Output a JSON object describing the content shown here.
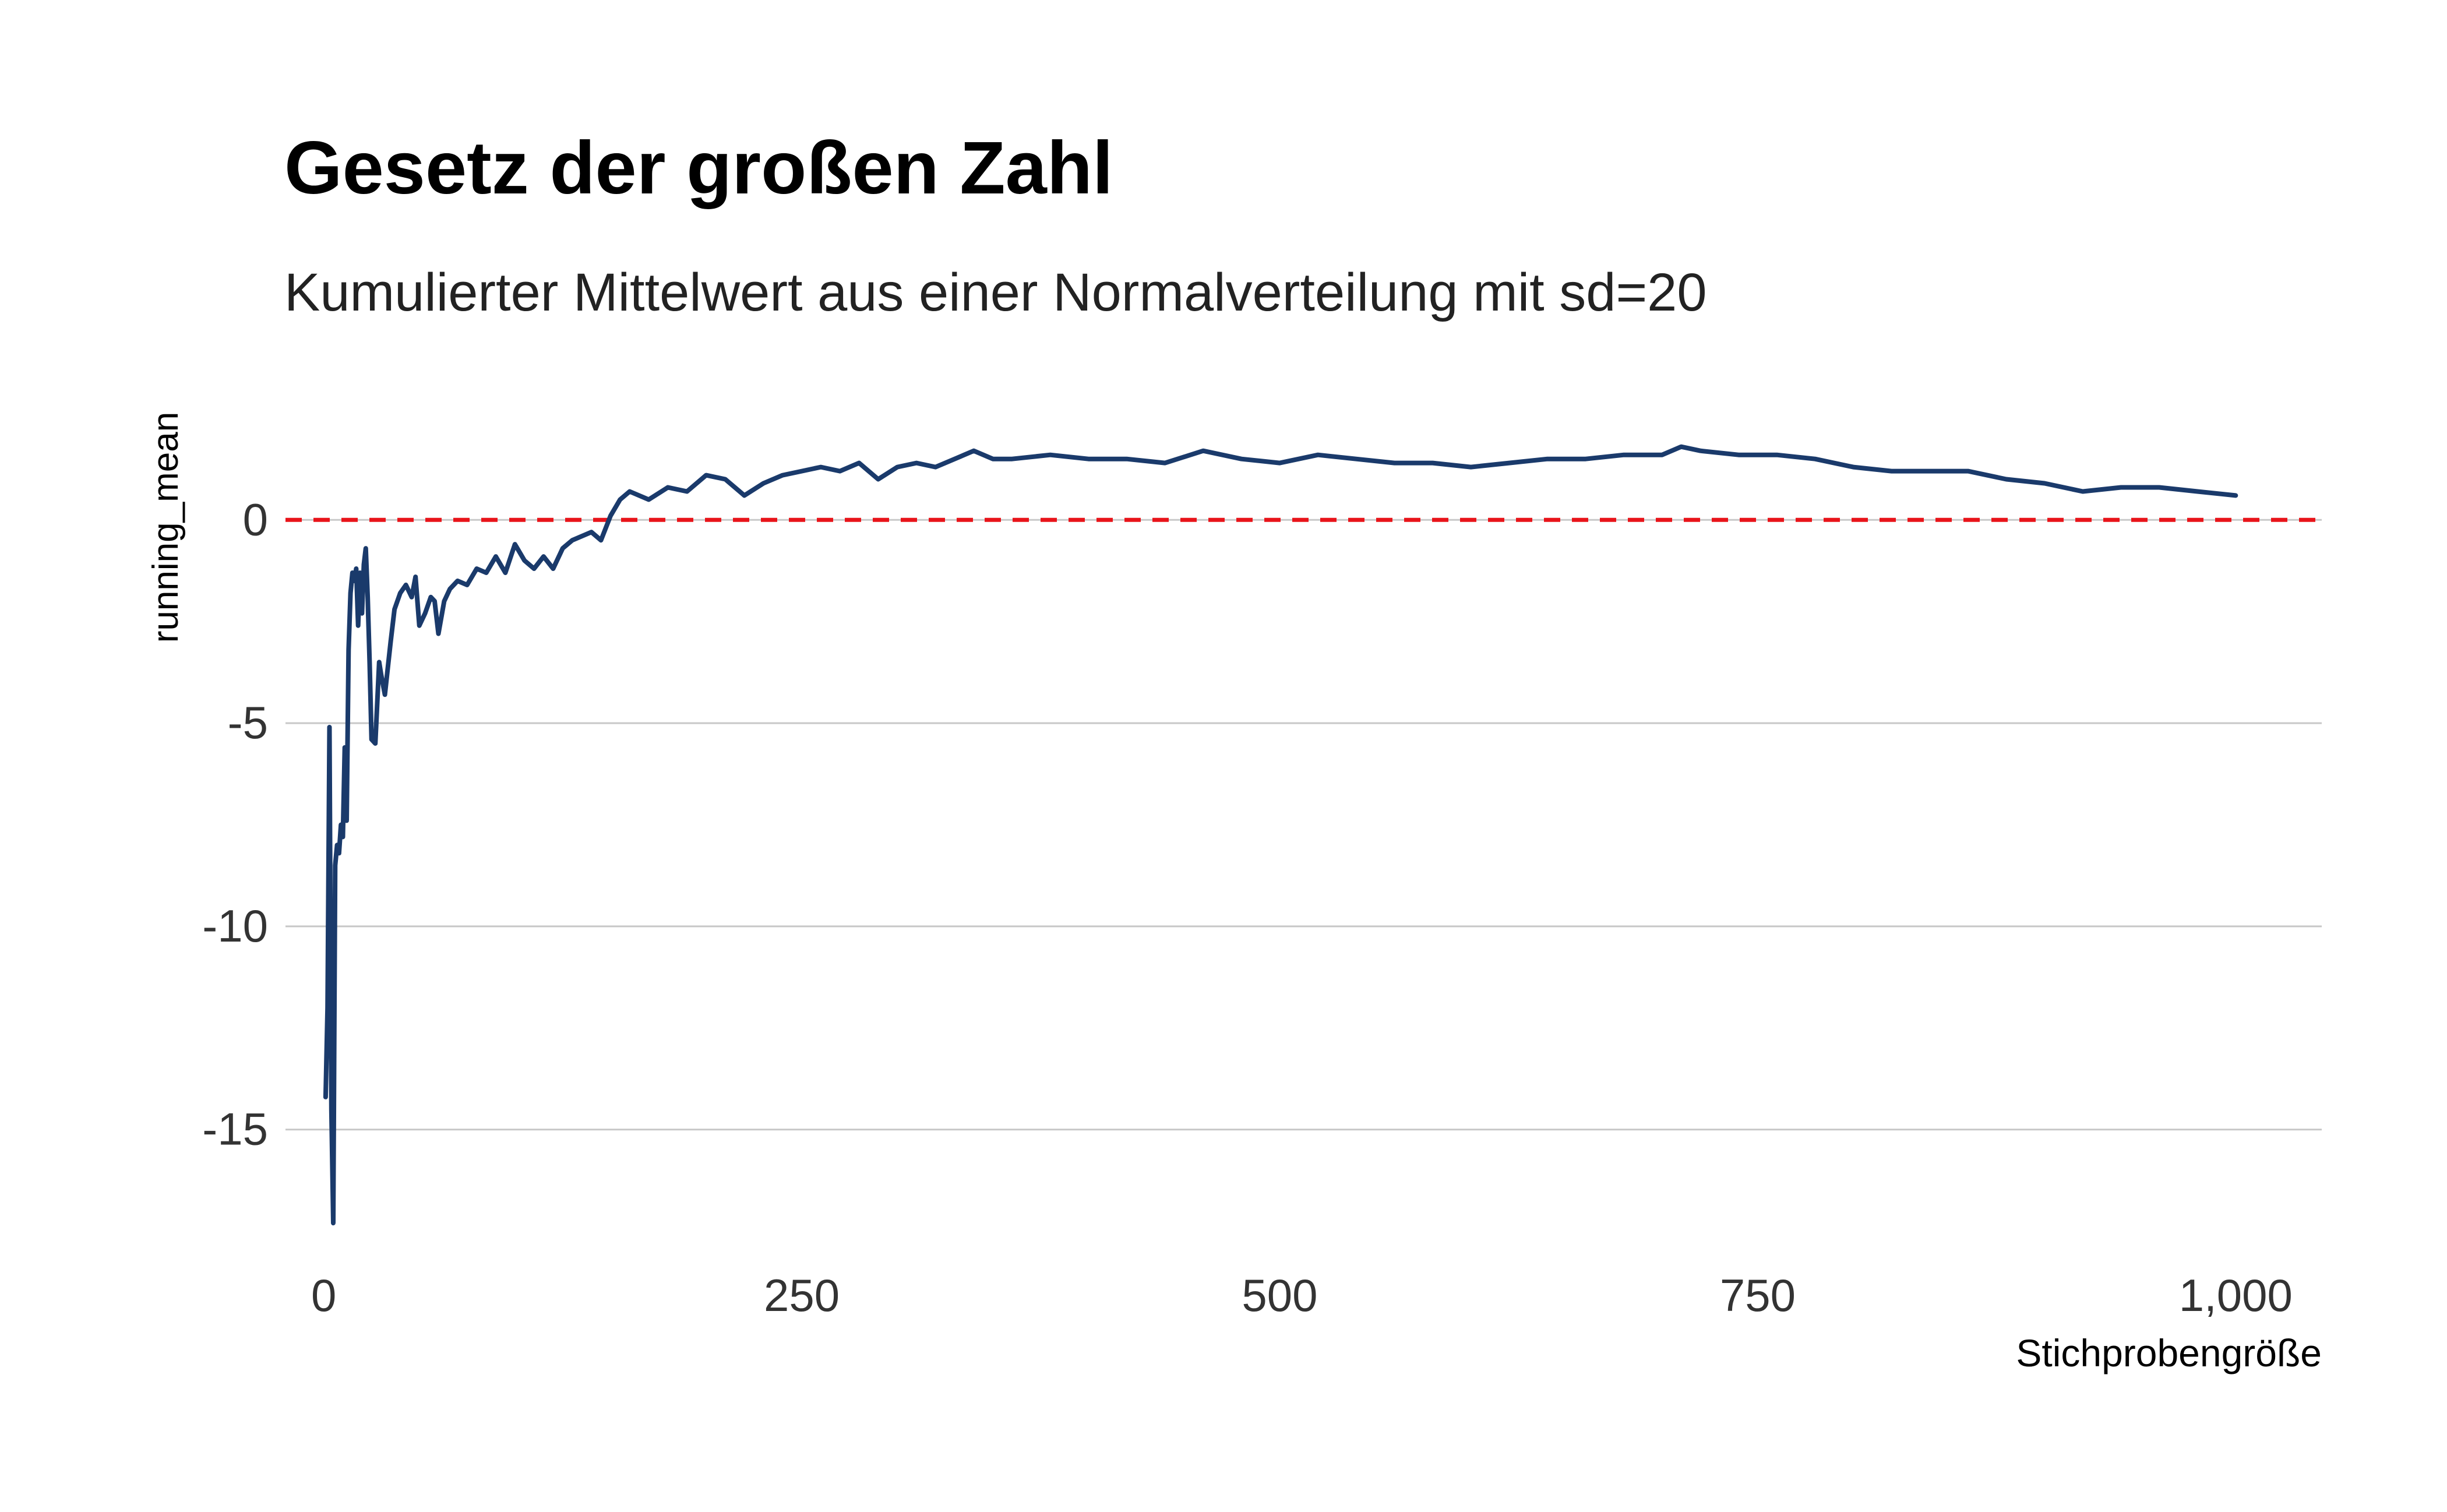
{
  "chart_data": {
    "type": "line",
    "title": "Gesetz der großen Zahl",
    "subtitle": "Kumulierter Mittelwert aus einer Normalverteilung mit sd=20",
    "xlabel": "Stichprobengröße",
    "ylabel": "running_mean",
    "xlim": [
      -20,
      1045
    ],
    "ylim": [
      -17.6,
      2.9
    ],
    "x_ticks": [
      0,
      250,
      500,
      750,
      1000
    ],
    "x_tick_labels": [
      "0",
      "250",
      "500",
      "750",
      "1,000"
    ],
    "y_ticks": [
      -15,
      -10,
      -5,
      0
    ],
    "y_tick_labels": [
      "-15",
      "-10",
      "-5",
      "0"
    ],
    "grid": "horizontal",
    "line_color": "#1a3a6b",
    "reference_line": {
      "y": 0,
      "color": "#e8141a",
      "style": "dashed"
    },
    "series": [
      {
        "x": [
          1,
          2,
          3,
          4,
          5,
          6,
          7,
          8,
          9,
          10,
          11,
          12,
          13,
          14,
          15,
          16,
          17,
          18,
          19,
          20,
          21,
          22,
          23,
          24,
          25,
          27,
          29,
          30,
          32,
          35,
          37,
          40,
          43,
          46,
          48,
          50,
          53,
          56,
          58,
          60,
          63,
          66,
          70,
          75,
          80,
          85,
          90,
          95,
          100,
          105,
          110,
          115,
          120,
          125,
          130,
          135,
          140,
          145,
          150,
          155,
          160,
          170,
          180,
          190,
          200,
          210,
          220,
          230,
          240,
          250,
          260,
          270,
          280,
          290,
          300,
          310,
          320,
          330,
          340,
          350,
          360,
          380,
          400,
          420,
          440,
          460,
          480,
          500,
          520,
          540,
          560,
          580,
          600,
          620,
          640,
          660,
          680,
          700,
          710,
          720,
          740,
          760,
          780,
          800,
          820,
          840,
          860,
          880,
          900,
          920,
          940,
          960,
          980,
          1000
        ],
        "y": [
          -14.2,
          -12.0,
          -5.1,
          -14.5,
          -17.3,
          -8.5,
          -8.0,
          -8.2,
          -7.5,
          -7.8,
          -5.6,
          -7.4,
          -3.2,
          -1.8,
          -1.3,
          -1.5,
          -1.2,
          -2.6,
          -1.3,
          -2.3,
          -1.1,
          -0.7,
          -1.9,
          -3.5,
          -5.4,
          -5.5,
          -3.5,
          -3.8,
          -4.3,
          -3.0,
          -2.2,
          -1.8,
          -1.6,
          -1.9,
          -1.4,
          -2.6,
          -2.3,
          -1.9,
          -2.0,
          -2.8,
          -2.0,
          -1.7,
          -1.5,
          -1.6,
          -1.2,
          -1.3,
          -0.9,
          -1.3,
          -0.6,
          -1.0,
          -1.2,
          -0.9,
          -1.2,
          -0.7,
          -0.5,
          -0.4,
          -0.3,
          -0.5,
          0.1,
          0.5,
          0.7,
          0.5,
          0.8,
          0.7,
          1.1,
          1.0,
          0.6,
          0.9,
          1.1,
          1.2,
          1.3,
          1.2,
          1.4,
          1.0,
          1.3,
          1.4,
          1.3,
          1.5,
          1.7,
          1.5,
          1.5,
          1.6,
          1.5,
          1.5,
          1.4,
          1.7,
          1.5,
          1.4,
          1.6,
          1.5,
          1.4,
          1.4,
          1.3,
          1.4,
          1.5,
          1.5,
          1.6,
          1.6,
          1.8,
          1.7,
          1.6,
          1.6,
          1.5,
          1.3,
          1.2,
          1.2,
          1.2,
          1.0,
          0.9,
          0.7,
          0.8,
          0.8,
          0.7,
          0.6
        ]
      }
    ]
  }
}
